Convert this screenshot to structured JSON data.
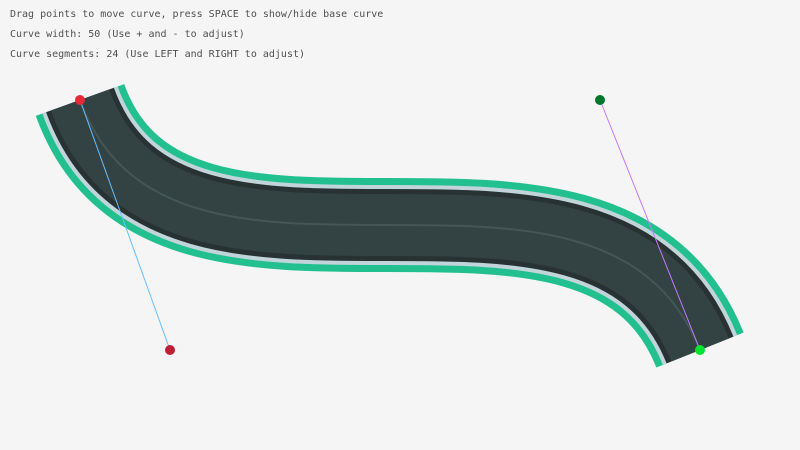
{
  "instructions": {
    "line1": "Drag points to move curve, press SPACE to show/hide base curve",
    "line2": "Curve width: 50 (Use + and - to adjust)",
    "line3": "Curve segments: 24 (Use LEFT and RIGHT to adjust)"
  },
  "curve": {
    "width": 50,
    "segments": 24
  },
  "colors": {
    "background": "#f5f5f5",
    "grass_border": "#22c08e",
    "road_edge": "#c0d4da",
    "road_shadow": "#283232",
    "road": "#334242",
    "lane_line": "#445656",
    "start_point": "#e62937",
    "start_tangent_point": "#be2137",
    "end_tangent_point": "#00752c",
    "end_point": "#00e430",
    "start_tangent_line": "#66bfff",
    "end_tangent_line": "#c87aff"
  }
}
